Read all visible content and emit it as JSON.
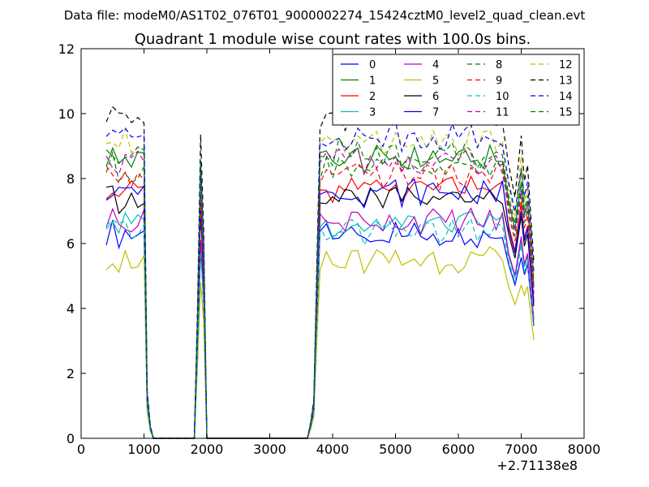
{
  "figure": {
    "suptitle": "Data file: modeM0/AS1T02_076T01_9000002274_15424cztM0_level2_quad_clean.evt",
    "title": "Quadrant 1 module wise count rates with 100.0s bins.",
    "x_offset_label": "+2.71138e8"
  },
  "chart_data": {
    "type": "line",
    "title": "Quadrant 1 module wise count rates with 100.0s bins.",
    "xlabel": "",
    "ylabel": "",
    "xlim": [
      0,
      8000
    ],
    "ylim": [
      0,
      12
    ],
    "x_offset": 271138000,
    "x_ticks": [
      0,
      1000,
      2000,
      3000,
      4000,
      5000,
      6000,
      7000,
      8000
    ],
    "y_ticks": [
      0,
      2,
      4,
      6,
      8,
      10,
      12
    ],
    "x_tick_labels": [
      "0",
      "1000",
      "2000",
      "3000",
      "4000",
      "5000",
      "6000",
      "7000",
      "8000"
    ],
    "y_tick_labels": [
      "0",
      "2",
      "4",
      "6",
      "8",
      "10",
      "12"
    ],
    "grid": false,
    "legend_placement": "top-right",
    "series": [
      {
        "name": "0",
        "color": "#0000ff",
        "dash": "solid",
        "base": 6.3
      },
      {
        "name": "1",
        "color": "#008000",
        "dash": "solid",
        "base": 8.6
      },
      {
        "name": "2",
        "color": "#ff0000",
        "dash": "solid",
        "base": 7.7
      },
      {
        "name": "3",
        "color": "#00bfbf",
        "dash": "solid",
        "base": 6.6
      },
      {
        "name": "4",
        "color": "#bf00bf",
        "dash": "solid",
        "base": 6.7
      },
      {
        "name": "5",
        "color": "#bfbf00",
        "dash": "solid",
        "base": 5.5
      },
      {
        "name": "6",
        "color": "#000000",
        "dash": "solid",
        "base": 7.4
      },
      {
        "name": "7",
        "color": "#0000ff",
        "dash": "solid",
        "base": 7.6
      },
      {
        "name": "8",
        "color": "#008000",
        "dash": "dashed",
        "base": 8.3
      },
      {
        "name": "9",
        "color": "#ff0000",
        "dash": "dashed",
        "base": 8.1
      },
      {
        "name": "10",
        "color": "#00bfbf",
        "dash": "dashed",
        "base": 6.4
      },
      {
        "name": "11",
        "color": "#bf00bf",
        "dash": "dashed",
        "base": 8.5
      },
      {
        "name": "12",
        "color": "#bfbf00",
        "dash": "dashed",
        "base": 9.1
      },
      {
        "name": "13",
        "color": "#000000",
        "dash": "dashed",
        "base": 9.9
      },
      {
        "name": "14",
        "color": "#0000ff",
        "dash": "dashed",
        "base": 9.3
      },
      {
        "name": "15",
        "color": "#008000",
        "dash": "dashed",
        "base": 8.8
      }
    ],
    "time_profile": {
      "x": [
        400,
        500,
        600,
        700,
        800,
        900,
        1000,
        1050,
        1100,
        1150,
        1200,
        1300,
        1400,
        1500,
        1600,
        1700,
        1800,
        1850,
        1900,
        1950,
        2000,
        2100,
        2200,
        2300,
        2400,
        2500,
        2600,
        2700,
        2800,
        2900,
        3000,
        3100,
        3200,
        3300,
        3400,
        3500,
        3600,
        3650,
        3700,
        3750,
        3800,
        3900,
        4000,
        4100,
        4200,
        4300,
        4400,
        4500,
        4600,
        4700,
        4800,
        4900,
        5000,
        5100,
        5200,
        5300,
        5400,
        5500,
        5600,
        5700,
        5800,
        5900,
        6000,
        6100,
        6200,
        6300,
        6400,
        6500,
        6600,
        6700,
        6800,
        6900,
        7000,
        7050,
        7100,
        7150,
        7200
      ],
      "relative_level": [
        1,
        1.02,
        0.98,
        1.01,
        0.99,
        1,
        1,
        0.15,
        0.04,
        0,
        0,
        0,
        0,
        0,
        0,
        0,
        0,
        0.4,
        0.93,
        0.65,
        0,
        0,
        0,
        0,
        0,
        0,
        0,
        0,
        0,
        0,
        0,
        0,
        0,
        0,
        0,
        0,
        0,
        0.05,
        0.12,
        0.55,
        1,
        1,
        0.98,
        1.01,
        0.99,
        1,
        1.02,
        0.98,
        1,
        1.01,
        0.99,
        1,
        1.02,
        0.98,
        1,
        1.01,
        0.99,
        1,
        1.02,
        0.98,
        1,
        1.01,
        0.99,
        1,
        1.02,
        0.98,
        1,
        1.01,
        0.99,
        1,
        0.85,
        0.75,
        0.92,
        0.8,
        0.85,
        0.7,
        0.55
      ]
    }
  }
}
